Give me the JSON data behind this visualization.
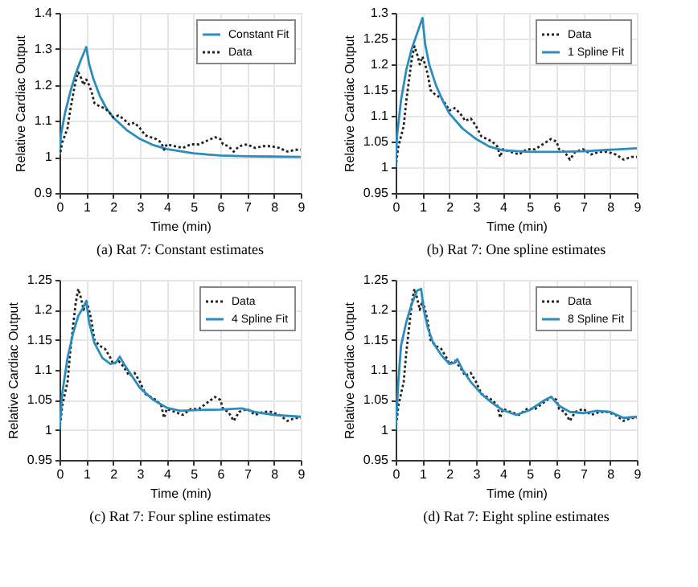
{
  "chart_data": [
    {
      "type": "line",
      "title": "(a) Rat 7: Constant estimates",
      "xlabel": "Time (min)",
      "ylabel": "Relative Cardiac Output",
      "xlim": [
        0,
        9
      ],
      "xticks": [
        0,
        1,
        2,
        3,
        4,
        5,
        6,
        7,
        8,
        9
      ],
      "ylim": [
        0.9,
        1.4
      ],
      "yticks": [
        0.9,
        1,
        1.1,
        1.2,
        1.3,
        1.4
      ],
      "grid": true,
      "legend": "top right",
      "marker": "none",
      "series": [
        {
          "name": "Constant Fit",
          "color": "#2b8cbe",
          "line_style": "solid",
          "x": [
            0,
            0.05,
            0.2,
            0.4,
            0.6,
            0.8,
            1.0,
            1.1,
            1.25,
            1.5,
            1.75,
            2,
            2.5,
            3,
            3.5,
            4,
            5,
            6,
            7,
            8,
            9
          ],
          "values": [
            1.0,
            1.06,
            1.12,
            1.18,
            1.23,
            1.27,
            1.305,
            1.26,
            1.22,
            1.17,
            1.135,
            1.11,
            1.075,
            1.05,
            1.033,
            1.022,
            1.01,
            1.004,
            1.002,
            1.001,
            1.0
          ]
        },
        {
          "name": "Data",
          "color": "#222222",
          "line_style": "dotted",
          "x": [
            0,
            0.1,
            0.2,
            0.3,
            0.4,
            0.5,
            0.6,
            0.7,
            0.8,
            0.9,
            1.0,
            1.1,
            1.2,
            1.3,
            1.5,
            1.7,
            1.9,
            2.0,
            2.2,
            2.4,
            2.6,
            2.8,
            3.0,
            3.2,
            3.4,
            3.6,
            3.8,
            3.9,
            4.0,
            4.3,
            4.6,
            4.9,
            5.2,
            5.5,
            5.8,
            6.0,
            6.1,
            6.3,
            6.5,
            6.7,
            7.0,
            7.3,
            7.6,
            7.9,
            8.2,
            8.5,
            8.8,
            9.0
          ],
          "values": [
            1.0,
            1.04,
            1.06,
            1.08,
            1.13,
            1.17,
            1.21,
            1.235,
            1.22,
            1.2,
            1.215,
            1.2,
            1.18,
            1.15,
            1.14,
            1.135,
            1.12,
            1.11,
            1.115,
            1.105,
            1.09,
            1.095,
            1.08,
            1.06,
            1.055,
            1.05,
            1.04,
            1.02,
            1.035,
            1.03,
            1.025,
            1.035,
            1.035,
            1.045,
            1.055,
            1.05,
            1.035,
            1.03,
            1.015,
            1.03,
            1.035,
            1.025,
            1.03,
            1.03,
            1.025,
            1.015,
            1.02,
            1.02
          ]
        }
      ]
    },
    {
      "type": "line",
      "title": "(b) Rat 7: One spline estimates",
      "xlabel": "Time (min)",
      "ylabel": "Relative Cardiac Output",
      "xlim": [
        0,
        9
      ],
      "xticks": [
        0,
        1,
        2,
        3,
        4,
        5,
        6,
        7,
        8,
        9
      ],
      "ylim": [
        0.95,
        1.3
      ],
      "yticks": [
        0.95,
        1,
        1.05,
        1.1,
        1.15,
        1.2,
        1.25,
        1.3
      ],
      "grid": true,
      "legend": "top right",
      "marker": "none",
      "series": [
        {
          "name": "Data",
          "color": "#222222",
          "line_style": "dotted",
          "x": [
            0,
            0.1,
            0.2,
            0.3,
            0.4,
            0.5,
            0.6,
            0.7,
            0.8,
            0.9,
            1.0,
            1.1,
            1.2,
            1.3,
            1.5,
            1.7,
            1.9,
            2.0,
            2.2,
            2.4,
            2.6,
            2.8,
            3.0,
            3.2,
            3.4,
            3.6,
            3.8,
            3.9,
            4.0,
            4.3,
            4.6,
            4.9,
            5.2,
            5.5,
            5.8,
            6.0,
            6.1,
            6.3,
            6.5,
            6.7,
            7.0,
            7.3,
            7.6,
            7.9,
            8.2,
            8.5,
            8.8,
            9.0
          ],
          "values": [
            1.0,
            1.04,
            1.06,
            1.08,
            1.13,
            1.17,
            1.21,
            1.235,
            1.22,
            1.2,
            1.215,
            1.2,
            1.18,
            1.15,
            1.14,
            1.135,
            1.12,
            1.11,
            1.115,
            1.105,
            1.09,
            1.095,
            1.08,
            1.06,
            1.055,
            1.05,
            1.04,
            1.02,
            1.035,
            1.03,
            1.025,
            1.035,
            1.035,
            1.045,
            1.055,
            1.05,
            1.035,
            1.03,
            1.015,
            1.03,
            1.035,
            1.025,
            1.03,
            1.03,
            1.025,
            1.015,
            1.02,
            1.02
          ]
        },
        {
          "name": "1 Spline Fit",
          "color": "#2b8cbe",
          "line_style": "solid",
          "x": [
            0,
            0.05,
            0.2,
            0.4,
            0.6,
            0.8,
            1.0,
            1.1,
            1.25,
            1.5,
            1.75,
            2,
            2.5,
            3,
            3.5,
            4,
            5,
            6,
            7,
            8,
            9
          ],
          "values": [
            1.0,
            1.06,
            1.13,
            1.19,
            1.23,
            1.26,
            1.29,
            1.24,
            1.2,
            1.16,
            1.13,
            1.105,
            1.075,
            1.055,
            1.04,
            1.033,
            1.03,
            1.03,
            1.031,
            1.034,
            1.037
          ]
        }
      ]
    },
    {
      "type": "line",
      "title": "(c) Rat 7: Four spline estimates",
      "xlabel": "Time (min)",
      "ylabel": "Relative Cardiac Output",
      "xlim": [
        0,
        9
      ],
      "xticks": [
        0,
        1,
        2,
        3,
        4,
        5,
        6,
        7,
        8,
        9
      ],
      "ylim": [
        0.95,
        1.25
      ],
      "yticks": [
        0.95,
        1,
        1.05,
        1.1,
        1.15,
        1.2,
        1.25
      ],
      "grid": true,
      "legend": "top right",
      "marker": "none",
      "series": [
        {
          "name": "Data",
          "color": "#222222",
          "line_style": "dotted",
          "x": [
            0,
            0.1,
            0.2,
            0.3,
            0.4,
            0.5,
            0.6,
            0.7,
            0.8,
            0.9,
            1.0,
            1.1,
            1.2,
            1.3,
            1.5,
            1.7,
            1.9,
            2.0,
            2.2,
            2.4,
            2.6,
            2.8,
            3.0,
            3.2,
            3.4,
            3.6,
            3.8,
            3.9,
            4.0,
            4.3,
            4.6,
            4.9,
            5.2,
            5.5,
            5.8,
            6.0,
            6.1,
            6.3,
            6.5,
            6.7,
            7.0,
            7.3,
            7.6,
            7.9,
            8.2,
            8.5,
            8.8,
            9.0
          ],
          "values": [
            1.0,
            1.04,
            1.06,
            1.08,
            1.13,
            1.17,
            1.21,
            1.235,
            1.22,
            1.2,
            1.215,
            1.2,
            1.18,
            1.15,
            1.14,
            1.135,
            1.12,
            1.11,
            1.115,
            1.105,
            1.09,
            1.095,
            1.08,
            1.06,
            1.055,
            1.05,
            1.04,
            1.02,
            1.035,
            1.03,
            1.025,
            1.035,
            1.035,
            1.045,
            1.055,
            1.05,
            1.035,
            1.03,
            1.015,
            1.03,
            1.035,
            1.025,
            1.03,
            1.03,
            1.025,
            1.015,
            1.02,
            1.02
          ]
        },
        {
          "name": "4 Spline Fit",
          "color": "#2b8cbe",
          "line_style": "solid",
          "x": [
            0,
            0.1,
            0.3,
            0.5,
            0.7,
            0.9,
            1.0,
            1.1,
            1.3,
            1.6,
            1.9,
            2.1,
            2.25,
            2.4,
            2.7,
            3,
            3.5,
            4,
            4.5,
            5,
            6,
            6.8,
            7.3,
            8,
            9
          ],
          "values": [
            1.0,
            1.06,
            1.12,
            1.16,
            1.19,
            1.205,
            1.215,
            1.18,
            1.145,
            1.12,
            1.11,
            1.112,
            1.122,
            1.11,
            1.09,
            1.07,
            1.05,
            1.037,
            1.032,
            1.033,
            1.034,
            1.036,
            1.03,
            1.025,
            1.022
          ]
        }
      ]
    },
    {
      "type": "line",
      "title": "(d) Rat 7: Eight spline estimates",
      "xlabel": "Time (min)",
      "ylabel": "Relative Cardiac Output",
      "xlim": [
        0,
        9
      ],
      "xticks": [
        0,
        1,
        2,
        3,
        4,
        5,
        6,
        7,
        8,
        9
      ],
      "ylim": [
        0.95,
        1.25
      ],
      "yticks": [
        0.95,
        1,
        1.05,
        1.1,
        1.15,
        1.2,
        1.25
      ],
      "grid": true,
      "legend": "top right",
      "marker": "none",
      "series": [
        {
          "name": "Data",
          "color": "#222222",
          "line_style": "dotted",
          "x": [
            0,
            0.1,
            0.2,
            0.3,
            0.4,
            0.5,
            0.6,
            0.7,
            0.8,
            0.9,
            1.0,
            1.1,
            1.2,
            1.3,
            1.5,
            1.7,
            1.9,
            2.0,
            2.2,
            2.4,
            2.6,
            2.8,
            3.0,
            3.2,
            3.4,
            3.6,
            3.8,
            3.9,
            4.0,
            4.3,
            4.6,
            4.9,
            5.2,
            5.5,
            5.8,
            6.0,
            6.1,
            6.3,
            6.5,
            6.7,
            7.0,
            7.3,
            7.6,
            7.9,
            8.2,
            8.5,
            8.8,
            9.0
          ],
          "values": [
            1.0,
            1.04,
            1.06,
            1.08,
            1.13,
            1.17,
            1.21,
            1.235,
            1.22,
            1.2,
            1.215,
            1.2,
            1.18,
            1.15,
            1.14,
            1.135,
            1.12,
            1.11,
            1.115,
            1.105,
            1.09,
            1.095,
            1.08,
            1.06,
            1.055,
            1.05,
            1.04,
            1.02,
            1.035,
            1.03,
            1.025,
            1.035,
            1.035,
            1.045,
            1.055,
            1.05,
            1.035,
            1.03,
            1.015,
            1.03,
            1.035,
            1.025,
            1.03,
            1.03,
            1.025,
            1.015,
            1.02,
            1.02
          ]
        },
        {
          "name": "8 Spline Fit",
          "color": "#2b8cbe",
          "line_style": "solid",
          "x": [
            0,
            0.1,
            0.2,
            0.4,
            0.6,
            0.8,
            0.95,
            1.05,
            1.2,
            1.4,
            1.7,
            2.0,
            2.2,
            2.3,
            2.5,
            2.8,
            3.2,
            3.6,
            4.0,
            4.5,
            5,
            5.5,
            5.8,
            6.1,
            6.5,
            7.0,
            7.5,
            8,
            8.5,
            9
          ],
          "values": [
            1.0,
            1.08,
            1.14,
            1.18,
            1.21,
            1.232,
            1.235,
            1.2,
            1.17,
            1.145,
            1.125,
            1.11,
            1.112,
            1.118,
            1.1,
            1.08,
            1.06,
            1.045,
            1.033,
            1.025,
            1.033,
            1.048,
            1.055,
            1.04,
            1.03,
            1.028,
            1.032,
            1.03,
            1.02,
            1.022
          ]
        }
      ]
    }
  ]
}
